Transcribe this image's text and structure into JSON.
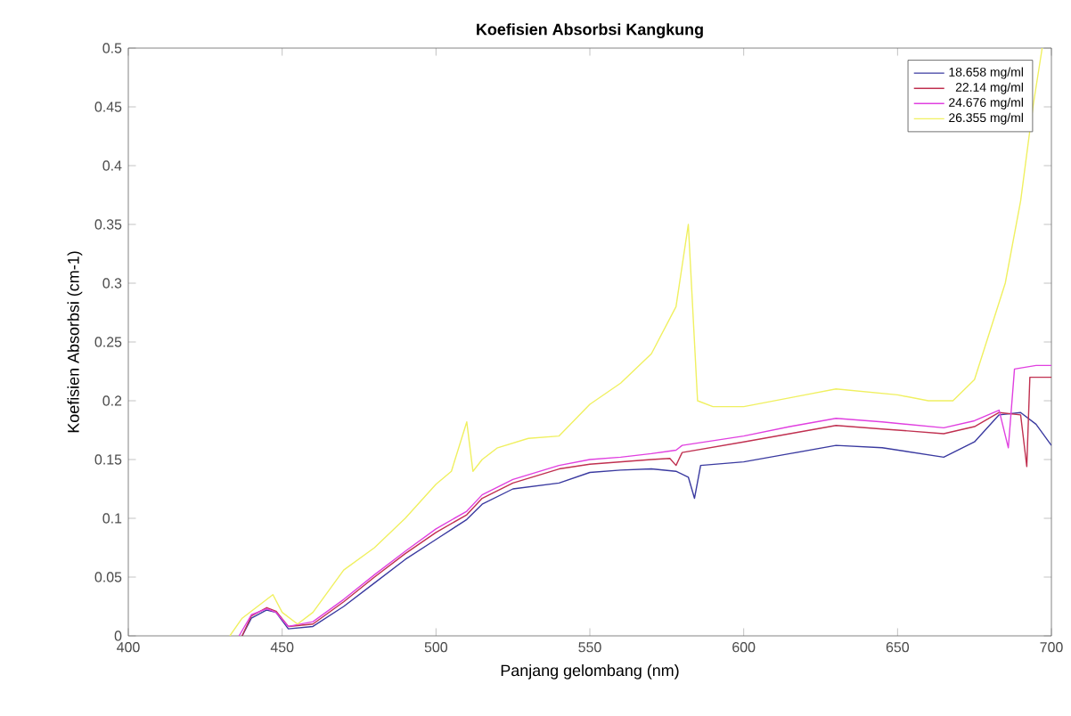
{
  "chart_data": {
    "type": "line",
    "title": "Koefisien Absorbsi Kangkung",
    "xlabel": "Panjang gelombang (nm)",
    "ylabel": "Koefisien Absorbsi (cm-1)",
    "xlim": [
      400,
      700
    ],
    "ylim": [
      0,
      0.5
    ],
    "xticks": [
      400,
      450,
      500,
      550,
      600,
      650,
      700
    ],
    "yticks": [
      0,
      0.05,
      0.1,
      0.15,
      0.2,
      0.25,
      0.3,
      0.35,
      0.4,
      0.45,
      0.5
    ],
    "legend": "top right",
    "grid": false,
    "series": [
      {
        "name": "18.658 mg/ml",
        "color": "#3a3aa0",
        "x": [
          437,
          440,
          445,
          448,
          452,
          460,
          470,
          480,
          490,
          500,
          510,
          515,
          525,
          540,
          550,
          560,
          570,
          578,
          582,
          584,
          586,
          600,
          615,
          630,
          645,
          665,
          675,
          683,
          690,
          695,
          700
        ],
        "values": [
          0,
          0.015,
          0.022,
          0.02,
          0.006,
          0.008,
          0.025,
          0.045,
          0.065,
          0.082,
          0.099,
          0.112,
          0.125,
          0.13,
          0.139,
          0.141,
          0.142,
          0.14,
          0.135,
          0.117,
          0.145,
          0.148,
          0.155,
          0.162,
          0.16,
          0.152,
          0.165,
          0.188,
          0.19,
          0.18,
          0.162
        ]
      },
      {
        "name": "22.14 mg/ml",
        "color": "#c03050",
        "x": [
          437,
          440,
          445,
          448,
          452,
          460,
          470,
          480,
          490,
          500,
          510,
          515,
          525,
          540,
          550,
          560,
          570,
          576,
          578,
          580,
          600,
          615,
          630,
          645,
          665,
          675,
          683,
          690,
          692,
          693,
          700
        ],
        "values": [
          0,
          0.017,
          0.024,
          0.021,
          0.008,
          0.01,
          0.029,
          0.05,
          0.07,
          0.088,
          0.103,
          0.117,
          0.13,
          0.142,
          0.146,
          0.148,
          0.15,
          0.151,
          0.145,
          0.156,
          0.165,
          0.172,
          0.179,
          0.176,
          0.172,
          0.178,
          0.19,
          0.188,
          0.144,
          0.22,
          0.22
        ]
      },
      {
        "name": "24.676 mg/ml",
        "color": "#e040e0",
        "x": [
          436,
          440,
          445,
          448,
          452,
          460,
          470,
          480,
          490,
          500,
          510,
          515,
          525,
          540,
          550,
          560,
          570,
          578,
          580,
          600,
          615,
          630,
          645,
          665,
          675,
          683,
          686,
          688,
          695,
          700
        ],
        "values": [
          0,
          0.018,
          0.023,
          0.02,
          0.008,
          0.012,
          0.031,
          0.052,
          0.072,
          0.091,
          0.106,
          0.12,
          0.133,
          0.145,
          0.15,
          0.152,
          0.155,
          0.158,
          0.162,
          0.17,
          0.178,
          0.185,
          0.182,
          0.177,
          0.183,
          0.192,
          0.16,
          0.227,
          0.23,
          0.23
        ]
      },
      {
        "name": "26.355 mg/ml",
        "color": "#f0f060",
        "x": [
          433,
          437,
          442,
          447,
          450,
          455,
          460,
          470,
          480,
          490,
          500,
          505,
          510,
          512,
          515,
          520,
          530,
          540,
          550,
          560,
          570,
          578,
          582,
          583,
          585,
          590,
          600,
          620,
          630,
          650,
          660,
          668,
          675,
          685,
          690,
          694,
          697
        ],
        "values": [
          0,
          0.015,
          0.025,
          0.035,
          0.02,
          0.01,
          0.02,
          0.056,
          0.075,
          0.1,
          0.129,
          0.14,
          0.182,
          0.14,
          0.15,
          0.16,
          0.168,
          0.17,
          0.197,
          0.215,
          0.24,
          0.28,
          0.35,
          0.3,
          0.2,
          0.195,
          0.195,
          0.205,
          0.21,
          0.205,
          0.2,
          0.2,
          0.218,
          0.3,
          0.37,
          0.45,
          0.5
        ]
      }
    ]
  }
}
